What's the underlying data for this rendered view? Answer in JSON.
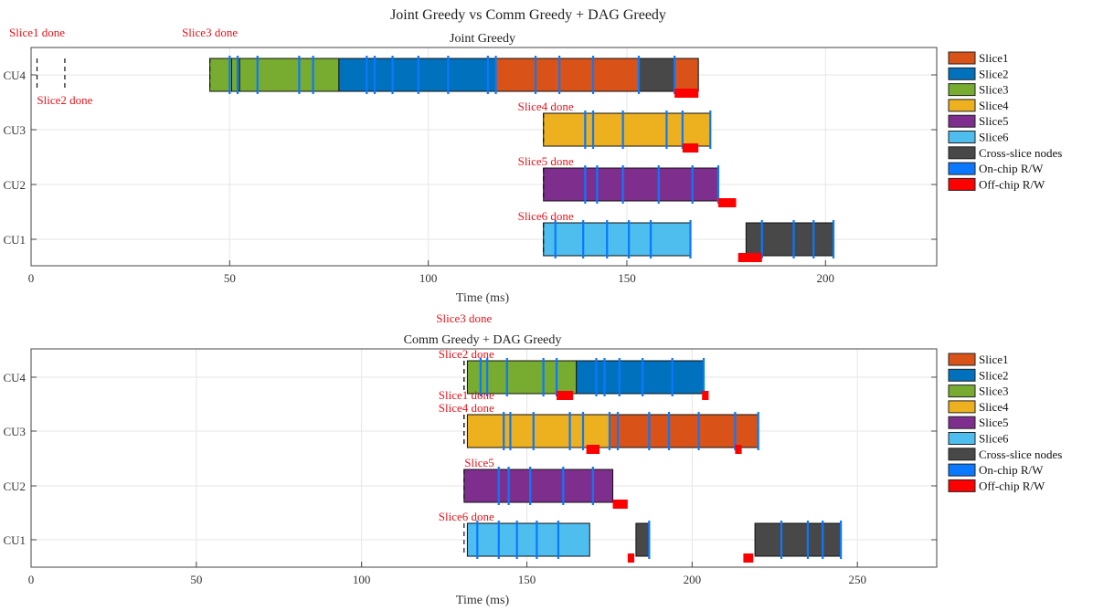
{
  "figure_title": "Joint Greedy vs Comm Greedy + DAG Greedy",
  "legend": [
    {
      "label": "Slice1",
      "color": "#d95319"
    },
    {
      "label": "Slice2",
      "color": "#0072bd"
    },
    {
      "label": "Slice3",
      "color": "#77ac30"
    },
    {
      "label": "Slice4",
      "color": "#edb120"
    },
    {
      "label": "Slice5",
      "color": "#7e2f8e"
    },
    {
      "label": "Slice6",
      "color": "#4dbeee"
    },
    {
      "label": "Cross-slice nodes",
      "color": "#484848"
    },
    {
      "label": "On-chip R/W",
      "color": "#0a78ff"
    },
    {
      "label": "Off-chip R/W",
      "color": "#ff0000"
    }
  ],
  "chart_data": [
    {
      "type": "gantt",
      "title": "Joint Greedy",
      "xlabel": "Time (ms)",
      "xlim": [
        0,
        228
      ],
      "xticks": [
        0,
        50,
        100,
        150,
        200
      ],
      "rows": [
        "CU4",
        "CU3",
        "CU2",
        "CU1"
      ],
      "tasks": [
        {
          "row": "CU4",
          "slice": 3,
          "start": 45,
          "end": 50.5
        },
        {
          "row": "CU4",
          "slice": 3,
          "start": 50.5,
          "end": 52.5
        },
        {
          "row": "CU4",
          "slice": 3,
          "start": 52.5,
          "end": 57
        },
        {
          "row": "CU4",
          "slice": 3,
          "start": 57,
          "end": 67.5
        },
        {
          "row": "CU4",
          "slice": 3,
          "start": 67.5,
          "end": 71
        },
        {
          "row": "CU4",
          "slice": 3,
          "start": 71,
          "end": 77.5
        },
        {
          "row": "CU4",
          "slice": 2,
          "start": 77.5,
          "end": 84.5
        },
        {
          "row": "CU4",
          "slice": 2,
          "start": 84.5,
          "end": 86.5
        },
        {
          "row": "CU4",
          "slice": 2,
          "start": 86.5,
          "end": 91
        },
        {
          "row": "CU4",
          "slice": 2,
          "start": 91,
          "end": 97.5
        },
        {
          "row": "CU4",
          "slice": 2,
          "start": 97.5,
          "end": 105
        },
        {
          "row": "CU4",
          "slice": 2,
          "start": 105,
          "end": 115
        },
        {
          "row": "CU4",
          "slice": 2,
          "start": 115,
          "end": 117
        },
        {
          "row": "CU4",
          "slice": 1,
          "start": 117,
          "end": 127
        },
        {
          "row": "CU4",
          "slice": 1,
          "start": 127,
          "end": 133
        },
        {
          "row": "CU4",
          "slice": 1,
          "start": 133,
          "end": 141.5
        },
        {
          "row": "CU4",
          "slice": 1,
          "start": 141.5,
          "end": 153
        },
        {
          "row": "CU4",
          "slice": "cross",
          "start": 153,
          "end": 162
        },
        {
          "row": "CU4",
          "slice": 1,
          "start": 162,
          "end": 168
        },
        {
          "row": "CU3",
          "slice": 4,
          "start": 129,
          "end": 139.5
        },
        {
          "row": "CU3",
          "slice": 4,
          "start": 139.5,
          "end": 141.5
        },
        {
          "row": "CU3",
          "slice": 4,
          "start": 141.5,
          "end": 149
        },
        {
          "row": "CU3",
          "slice": 4,
          "start": 149,
          "end": 160
        },
        {
          "row": "CU3",
          "slice": 4,
          "start": 160,
          "end": 164
        },
        {
          "row": "CU3",
          "slice": 4,
          "start": 164,
          "end": 171
        },
        {
          "row": "CU2",
          "slice": 5,
          "start": 129,
          "end": 139.5
        },
        {
          "row": "CU2",
          "slice": 5,
          "start": 139.5,
          "end": 142.5
        },
        {
          "row": "CU2",
          "slice": 5,
          "start": 142.5,
          "end": 149
        },
        {
          "row": "CU2",
          "slice": 5,
          "start": 149,
          "end": 158
        },
        {
          "row": "CU2",
          "slice": 5,
          "start": 158,
          "end": 166.5
        },
        {
          "row": "CU2",
          "slice": 5,
          "start": 166.5,
          "end": 173
        },
        {
          "row": "CU1",
          "slice": 6,
          "start": 129,
          "end": 132
        },
        {
          "row": "CU1",
          "slice": 6,
          "start": 132,
          "end": 139
        },
        {
          "row": "CU1",
          "slice": 6,
          "start": 139,
          "end": 145
        },
        {
          "row": "CU1",
          "slice": 6,
          "start": 145,
          "end": 150.5
        },
        {
          "row": "CU1",
          "slice": 6,
          "start": 150.5,
          "end": 156
        },
        {
          "row": "CU1",
          "slice": 6,
          "start": 156,
          "end": 166
        },
        {
          "row": "CU1",
          "slice": "cross",
          "start": 180,
          "end": 184
        },
        {
          "row": "CU1",
          "slice": "cross",
          "start": 184,
          "end": 192
        },
        {
          "row": "CU1",
          "slice": "cross",
          "start": 192,
          "end": 197
        },
        {
          "row": "CU1",
          "slice": "cross",
          "start": 197,
          "end": 202
        }
      ],
      "onchip": [
        {
          "row": "CU4",
          "t": [
            50,
            52,
            57,
            67.5,
            71,
            84.5,
            86.5,
            91,
            97.5,
            105,
            115,
            117,
            127,
            133,
            141.5,
            153,
            162
          ]
        },
        {
          "row": "CU3",
          "t": [
            139.5,
            141.5,
            149,
            160,
            164,
            171
          ]
        },
        {
          "row": "CU2",
          "t": [
            139.5,
            142.5,
            149,
            158,
            166.5,
            173
          ]
        },
        {
          "row": "CU1",
          "t": [
            132,
            139,
            145,
            150.5,
            156,
            166,
            184,
            192,
            197,
            202
          ]
        }
      ],
      "offchip": [
        {
          "row": "CU4",
          "start": 162,
          "end": 168
        },
        {
          "row": "CU3",
          "start": 164,
          "end": 168
        },
        {
          "row": "CU2",
          "start": 173,
          "end": 177.5
        },
        {
          "row": "CU1",
          "start": 178,
          "end": 184
        }
      ],
      "markers": [
        {
          "label": "Slice1 done",
          "t": 1.5,
          "row": "CU4",
          "label_pos": "above-axes"
        },
        {
          "label": "Slice2 done",
          "t": 8.5,
          "row": "CU4",
          "label_pos": "below-row"
        },
        {
          "label": "Slice3 done",
          "t": 45,
          "row": "CU4",
          "label_pos": "above-axes"
        },
        {
          "label": "Slice4 done",
          "t": 129,
          "row": "CU3",
          "label_pos": "above-row"
        },
        {
          "label": "Slice5 done",
          "t": 129,
          "row": "CU2",
          "label_pos": "above-row"
        },
        {
          "label": "Slice6 done",
          "t": 129,
          "row": "CU1",
          "label_pos": "above-row"
        }
      ]
    },
    {
      "type": "gantt",
      "title": "Comm Greedy + DAG Greedy",
      "xlabel": "Time (ms)",
      "xlim": [
        0,
        274
      ],
      "xticks": [
        0,
        50,
        100,
        150,
        200,
        250
      ],
      "rows": [
        "CU4",
        "CU3",
        "CU2",
        "CU1"
      ],
      "tasks": [
        {
          "row": "CU4",
          "slice": 3,
          "start": 132,
          "end": 136
        },
        {
          "row": "CU4",
          "slice": 3,
          "start": 136,
          "end": 138
        },
        {
          "row": "CU4",
          "slice": 3,
          "start": 138,
          "end": 144
        },
        {
          "row": "CU4",
          "slice": 3,
          "start": 144,
          "end": 155
        },
        {
          "row": "CU4",
          "slice": 3,
          "start": 155,
          "end": 159
        },
        {
          "row": "CU4",
          "slice": 3,
          "start": 159,
          "end": 165
        },
        {
          "row": "CU4",
          "slice": 2,
          "start": 165,
          "end": 171
        },
        {
          "row": "CU4",
          "slice": 2,
          "start": 171,
          "end": 173.5
        },
        {
          "row": "CU4",
          "slice": 2,
          "start": 173.5,
          "end": 178
        },
        {
          "row": "CU4",
          "slice": 2,
          "start": 178,
          "end": 185
        },
        {
          "row": "CU4",
          "slice": 2,
          "start": 185,
          "end": 194
        },
        {
          "row": "CU4",
          "slice": 2,
          "start": 194,
          "end": 203.5
        },
        {
          "row": "CU3",
          "slice": 4,
          "start": 132,
          "end": 143
        },
        {
          "row": "CU3",
          "slice": 4,
          "start": 143,
          "end": 145
        },
        {
          "row": "CU3",
          "slice": 4,
          "start": 145,
          "end": 152
        },
        {
          "row": "CU3",
          "slice": 4,
          "start": 152,
          "end": 163
        },
        {
          "row": "CU3",
          "slice": 4,
          "start": 163,
          "end": 167
        },
        {
          "row": "CU3",
          "slice": 4,
          "start": 167,
          "end": 175
        },
        {
          "row": "CU3",
          "slice": 1,
          "start": 175,
          "end": 177.5
        },
        {
          "row": "CU3",
          "slice": 1,
          "start": 177.5,
          "end": 187
        },
        {
          "row": "CU3",
          "slice": 1,
          "start": 187,
          "end": 193
        },
        {
          "row": "CU3",
          "slice": 1,
          "start": 193,
          "end": 202
        },
        {
          "row": "CU3",
          "slice": 1,
          "start": 202,
          "end": 213
        },
        {
          "row": "CU3",
          "slice": 1,
          "start": 213,
          "end": 220
        },
        {
          "row": "CU2",
          "slice": 5,
          "start": 131,
          "end": 141.5
        },
        {
          "row": "CU2",
          "slice": 5,
          "start": 141.5,
          "end": 144.5
        },
        {
          "row": "CU2",
          "slice": 5,
          "start": 144.5,
          "end": 151
        },
        {
          "row": "CU2",
          "slice": 5,
          "start": 151,
          "end": 161
        },
        {
          "row": "CU2",
          "slice": 5,
          "start": 161,
          "end": 170
        },
        {
          "row": "CU2",
          "slice": 5,
          "start": 170,
          "end": 176
        },
        {
          "row": "CU1",
          "slice": 6,
          "start": 132,
          "end": 135
        },
        {
          "row": "CU1",
          "slice": 6,
          "start": 135,
          "end": 141.5
        },
        {
          "row": "CU1",
          "slice": 6,
          "start": 141.5,
          "end": 147
        },
        {
          "row": "CU1",
          "slice": 6,
          "start": 147,
          "end": 153
        },
        {
          "row": "CU1",
          "slice": 6,
          "start": 153,
          "end": 159.5
        },
        {
          "row": "CU1",
          "slice": 6,
          "start": 159.5,
          "end": 169
        },
        {
          "row": "CU1",
          "slice": "cross",
          "start": 183,
          "end": 187
        },
        {
          "row": "CU1",
          "slice": "cross",
          "start": 219,
          "end": 227
        },
        {
          "row": "CU1",
          "slice": "cross",
          "start": 227,
          "end": 235
        },
        {
          "row": "CU1",
          "slice": "cross",
          "start": 235,
          "end": 239.5
        },
        {
          "row": "CU1",
          "slice": "cross",
          "start": 239.5,
          "end": 245
        }
      ],
      "onchip": [
        {
          "row": "CU4",
          "t": [
            136,
            138,
            144,
            155,
            159,
            171,
            173.5,
            178,
            185,
            194,
            203.5
          ]
        },
        {
          "row": "CU3",
          "t": [
            143,
            145,
            152,
            163,
            167,
            175,
            177.5,
            187,
            193,
            202,
            213,
            220
          ]
        },
        {
          "row": "CU2",
          "t": [
            141.5,
            144.5,
            151,
            161,
            170
          ]
        },
        {
          "row": "CU1",
          "t": [
            135,
            141.5,
            147,
            153,
            159.5,
            187,
            227,
            235,
            239.5,
            245
          ]
        }
      ],
      "offchip": [
        {
          "row": "CU4",
          "start": 159,
          "end": 164
        },
        {
          "row": "CU4",
          "start": 203,
          "end": 205
        },
        {
          "row": "CU3",
          "start": 168,
          "end": 172
        },
        {
          "row": "CU3",
          "start": 213,
          "end": 215
        },
        {
          "row": "CU2",
          "start": 176,
          "end": 180.5
        },
        {
          "row": "CU1",
          "start": 180.5,
          "end": 182.5
        },
        {
          "row": "CU1",
          "start": 215.5,
          "end": 218.5
        }
      ],
      "markers": [
        {
          "label": "Slice3 done",
          "t": 131,
          "row": "CU4",
          "label_pos": "above-title"
        },
        {
          "label": "Slice2 done",
          "t": 131,
          "row": "CU4",
          "label_pos": "above-row"
        },
        {
          "label": "Slice1 done",
          "t": 131,
          "row": "CU3",
          "label_pos": "above-row-2"
        },
        {
          "label": "Slice4 done",
          "t": 131,
          "row": "CU3",
          "label_pos": "above-row"
        },
        {
          "label": "Slice5",
          "t": 131,
          "row": "CU2",
          "label_pos": "above-row"
        },
        {
          "label": "Slice6 done",
          "t": 131,
          "row": "CU1",
          "label_pos": "above-row"
        }
      ]
    }
  ]
}
